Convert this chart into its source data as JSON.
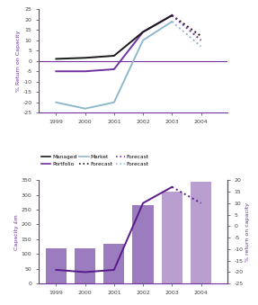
{
  "years": [
    1999,
    2000,
    2001,
    2002,
    2003
  ],
  "years_forecast": [
    2003,
    2004
  ],
  "top": {
    "managed_solid": [
      1,
      1.5,
      2.5,
      14,
      22
    ],
    "managed_forecast": [
      22,
      12
    ],
    "portfolio_solid": [
      -5,
      -5,
      -4,
      14,
      22
    ],
    "portfolio_forecast": [
      22,
      10
    ],
    "market_solid": [
      -20,
      -23,
      -20,
      10,
      19
    ],
    "market_forecast": [
      19,
      7
    ],
    "zero_line": 0,
    "ylim": [
      -25,
      25
    ],
    "yticks": [
      -25,
      -20,
      -15,
      -10,
      -5,
      0,
      5,
      10,
      15,
      20,
      25
    ],
    "ylabel": "% Return on Capacity",
    "managed_color": "#1a1a1a",
    "portfolio_color": "#7030a0",
    "market_color": "#8fb8cc",
    "zeroline_color": "#7030a0"
  },
  "bottom": {
    "bar_values": [
      118,
      118,
      135,
      265,
      310,
      345
    ],
    "bar_years": [
      1999,
      2000,
      2001,
      2002,
      2003,
      2004
    ],
    "bar_color": "#9b7dbf",
    "managed_capacity_line": [
      -19,
      -20,
      -19,
      10,
      17
    ],
    "forecast_years": [
      2003,
      2004
    ],
    "forecast_line": [
      17,
      10
    ],
    "line_color": "#5a1a8a",
    "ylim_left": [
      0,
      350
    ],
    "ylim_right": [
      -25,
      20
    ],
    "yticks_left": [
      0,
      50,
      100,
      150,
      200,
      250,
      300,
      350
    ],
    "yticks_right": [
      -25,
      -20,
      -15,
      -10,
      -5,
      0,
      5,
      10,
      15,
      20
    ],
    "ylabel_left": "Capacity £m",
    "ylabel_right": "% return on capacity"
  }
}
